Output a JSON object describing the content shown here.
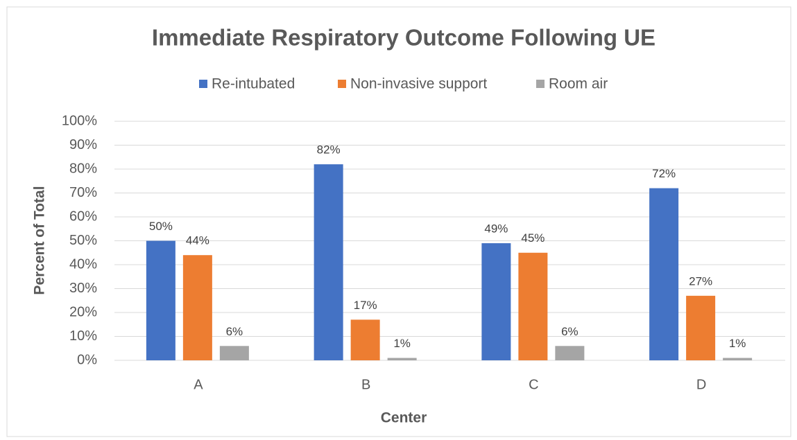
{
  "chart_data": {
    "type": "bar",
    "title": "Immediate Respiratory Outcome Following UE",
    "x_label": "Center",
    "y_label": "Percent of Total",
    "categories": [
      "A",
      "B",
      "C",
      "D"
    ],
    "series": [
      {
        "name": "Re-intubated",
        "color": "#4472c4",
        "values": [
          50,
          82,
          49,
          72
        ],
        "value_labels": [
          "50%",
          "82%",
          "49%",
          "72%"
        ]
      },
      {
        "name": "Non-invasive support",
        "color": "#ed7d31",
        "values": [
          44,
          17,
          45,
          27
        ],
        "value_labels": [
          "44%",
          "17%",
          "45%",
          "27%"
        ]
      },
      {
        "name": "Room air",
        "color": "#a5a5a5",
        "values": [
          6,
          1,
          6,
          1
        ],
        "value_labels": [
          "6%",
          "1%",
          "6%",
          "1%"
        ]
      }
    ],
    "ylim": [
      0,
      100
    ],
    "yticks": [
      {
        "value": 0,
        "label": "0%"
      },
      {
        "value": 10,
        "label": "10%"
      },
      {
        "value": 20,
        "label": "20%"
      },
      {
        "value": 30,
        "label": "30%"
      },
      {
        "value": 40,
        "label": "40%"
      },
      {
        "value": 50,
        "label": "50%"
      },
      {
        "value": 60,
        "label": "60%"
      },
      {
        "value": 70,
        "label": "70%"
      },
      {
        "value": 80,
        "label": "80%"
      },
      {
        "value": 90,
        "label": "90%"
      },
      {
        "value": 100,
        "label": "100%"
      }
    ],
    "grid": true,
    "legend": "top"
  }
}
